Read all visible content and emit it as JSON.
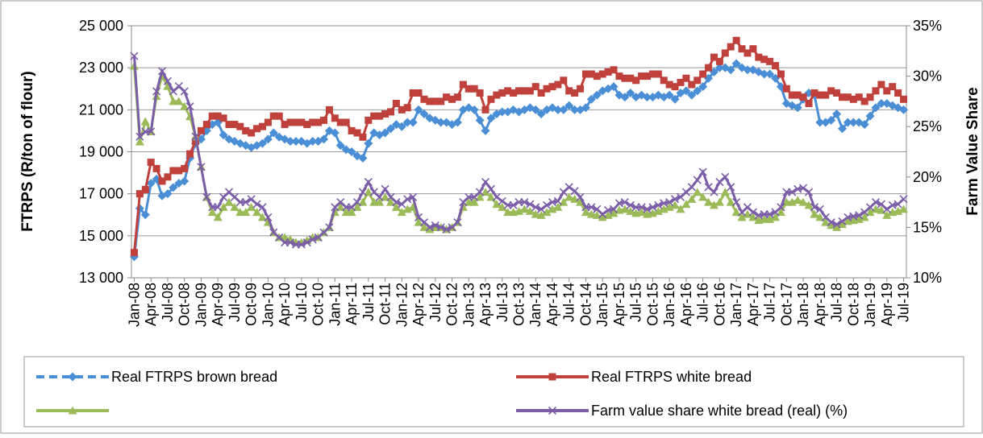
{
  "chart_data": {
    "type": "line",
    "y_title": "FTRPS (R/ton of flour)",
    "y2_title": "Farm Value Share",
    "categories": [
      "Jan-08",
      null,
      null,
      "Apr-08",
      null,
      null,
      "Jul-08",
      null,
      null,
      "Oct-08",
      null,
      null,
      "Jan-09",
      null,
      null,
      "Apr-09",
      null,
      null,
      "Jul-09",
      null,
      null,
      "Oct-09",
      null,
      null,
      "Jan-10",
      null,
      null,
      "Apr-10",
      null,
      null,
      "Jul-10",
      null,
      null,
      "Oct-10",
      null,
      null,
      "Jan-11",
      null,
      null,
      "Apr-11",
      null,
      null,
      "Jul-11",
      null,
      null,
      "Oct-11",
      null,
      null,
      "Jan-12",
      null,
      null,
      "Apr-12",
      null,
      null,
      "Jul-12",
      null,
      null,
      "Oct-12",
      null,
      null,
      "Jan-13",
      null,
      null,
      "Apr-13",
      null,
      null,
      "Jul-13",
      null,
      null,
      "Oct-13",
      null,
      null,
      "Jan-14",
      null,
      null,
      "Apr-14",
      null,
      null,
      "Jul-14",
      null,
      null,
      "Oct-14",
      null,
      null,
      "Jan-15",
      null,
      null,
      "Apr-15",
      null,
      null,
      "Jul-15",
      null,
      null,
      "Oct-15",
      null,
      null,
      "Jan-16",
      null,
      null,
      "Apr-16",
      null,
      null,
      "Jul-16",
      null,
      null,
      "Oct-16",
      null,
      null,
      "Jan-17",
      null,
      null,
      "Apr-17",
      null,
      null,
      "Jul-17",
      null,
      null,
      "Oct-17",
      null,
      null,
      "Jan-18",
      null,
      null,
      "Apr-18",
      null,
      null,
      "Jul-18",
      null,
      null,
      "Oct-18",
      null,
      null,
      "Jan-19",
      null,
      null,
      "Apr-19",
      null,
      null,
      "Jul-19"
    ],
    "ylim": [
      13000,
      25000
    ],
    "yticks": [
      {
        "value": 13000,
        "label": "13 000"
      },
      {
        "value": 15000,
        "label": "15 000"
      },
      {
        "value": 17000,
        "label": "17 000"
      },
      {
        "value": 19000,
        "label": "19 000"
      },
      {
        "value": 21000,
        "label": "21 000"
      },
      {
        "value": 23000,
        "label": "23 000"
      },
      {
        "value": 25000,
        "label": "25 000"
      }
    ],
    "y2lim": [
      10,
      35
    ],
    "y2ticks": [
      {
        "value": 10,
        "label": "10%"
      },
      {
        "value": 15,
        "label": "15%"
      },
      {
        "value": 20,
        "label": "20%"
      },
      {
        "value": 25,
        "label": "25%"
      },
      {
        "value": 30,
        "label": "30%"
      },
      {
        "value": 35,
        "label": "35%"
      }
    ],
    "grid": true,
    "series": [
      {
        "name": "Real FTRPS brown bread",
        "color": "#4a8ed6",
        "marker": "diamond",
        "dashed": true,
        "values": [
          14000,
          16300,
          16000,
          17500,
          17700,
          16900,
          17000,
          17300,
          17500,
          17600,
          18700,
          19400,
          19600,
          20000,
          20300,
          20400,
          19800,
          19600,
          19500,
          19400,
          19300,
          19200,
          19300,
          19400,
          19600,
          19900,
          19700,
          19600,
          19500,
          19500,
          19500,
          19400,
          19500,
          19500,
          19600,
          20000,
          19900,
          19300,
          19100,
          19000,
          18800,
          18700,
          19400,
          19900,
          19800,
          19900,
          20100,
          20300,
          20200,
          20400,
          20400,
          21000,
          20800,
          20600,
          20500,
          20400,
          20400,
          20300,
          20400,
          21000,
          21100,
          21000,
          20500,
          20000,
          20600,
          20800,
          20900,
          20900,
          21000,
          20900,
          21000,
          21100,
          21000,
          20800,
          21000,
          21100,
          21000,
          21000,
          21200,
          21000,
          21000,
          21100,
          21500,
          21700,
          21900,
          22000,
          22100,
          21700,
          21600,
          21800,
          21600,
          21700,
          21600,
          21600,
          21700,
          21600,
          21700,
          21500,
          21800,
          21900,
          21700,
          21900,
          22100,
          22500,
          22800,
          23000,
          23000,
          22900,
          23200,
          23000,
          22900,
          22900,
          22800,
          22700,
          22700,
          22500,
          22100,
          21300,
          21200,
          21100,
          21500,
          21800,
          21700,
          20400,
          20400,
          20500,
          20800,
          20100,
          20400,
          20400,
          20400,
          20300,
          20700,
          21100,
          21300,
          21300,
          21200,
          21100,
          21000
        ]
      },
      {
        "name": "Real FTRPS white bread",
        "color": "#c0403c",
        "marker": "square",
        "values": [
          14200,
          17000,
          17200,
          18500,
          18200,
          17600,
          17800,
          18100,
          18100,
          18200,
          18900,
          19500,
          20000,
          20300,
          20700,
          20700,
          20600,
          20300,
          20300,
          20200,
          20000,
          19900,
          20100,
          20200,
          20400,
          20700,
          20700,
          20300,
          20400,
          20400,
          20400,
          20300,
          20400,
          20400,
          20500,
          21000,
          20600,
          20400,
          20400,
          20000,
          19900,
          19700,
          20500,
          20700,
          20700,
          20800,
          20900,
          21300,
          21000,
          21100,
          21800,
          21800,
          21500,
          21400,
          21400,
          21400,
          21600,
          21500,
          21600,
          22200,
          22000,
          22000,
          21800,
          21000,
          21500,
          21700,
          21800,
          21900,
          21800,
          21900,
          21900,
          21900,
          22100,
          21800,
          22000,
          22100,
          22200,
          22400,
          21900,
          21800,
          22000,
          22700,
          22700,
          22600,
          22700,
          22800,
          22900,
          22600,
          22500,
          22500,
          22400,
          22600,
          22600,
          22700,
          22700,
          22400,
          22200,
          22100,
          22300,
          22500,
          22200,
          22400,
          22700,
          23000,
          23500,
          23300,
          23700,
          24000,
          24300,
          23900,
          23700,
          23900,
          23500,
          23400,
          23300,
          23100,
          22700,
          22000,
          21700,
          21700,
          21600,
          21300,
          21800,
          21700,
          21700,
          21900,
          21800,
          21600,
          21600,
          21500,
          21600,
          21400,
          21600,
          21900,
          22200,
          21900,
          22100,
          21800,
          21500
        ]
      },
      {
        "color": "#9bbb59",
        "marker": "triangle",
        "axis": "y2",
        "values": [
          31,
          23.5,
          25.5,
          24.5,
          28,
          30,
          29,
          27.5,
          27.5,
          27,
          26,
          24,
          21,
          18,
          16.5,
          16,
          17,
          17.5,
          17,
          16.5,
          16.5,
          17,
          16.5,
          16,
          15.5,
          14.5,
          14,
          14,
          13.8,
          13.5,
          13.5,
          13.7,
          14,
          14,
          14.5,
          15,
          16.5,
          17,
          16.5,
          16.5,
          17,
          17.5,
          18.5,
          17.5,
          17.5,
          18,
          17.5,
          17,
          16.5,
          16.8,
          17,
          15.5,
          15,
          14.8,
          15,
          15,
          14.8,
          15,
          15.5,
          17,
          17.5,
          17.5,
          18,
          18.5,
          18,
          17.3,
          17,
          16.5,
          16.5,
          16.6,
          16.8,
          16.6,
          16.3,
          16.2,
          16.5,
          16.8,
          17,
          17.5,
          18,
          17.8,
          17.5,
          16.5,
          16.3,
          16.2,
          16,
          16.2,
          16.4,
          16.7,
          16.8,
          16.6,
          16.4,
          16.5,
          16.3,
          16.4,
          16.6,
          16.8,
          17,
          17.2,
          16.8,
          17.3,
          17.8,
          18.5,
          18,
          17.5,
          17.2,
          17.5,
          18.5,
          17.5,
          16.5,
          16,
          16.3,
          16,
          15.7,
          15.8,
          15.8,
          16,
          16.5,
          17.5,
          17.5,
          17.7,
          17.5,
          17.2,
          16.3,
          16,
          15.5,
          15.2,
          15,
          15.3,
          15.6,
          15.7,
          15.8,
          16,
          16.5,
          16.8,
          16.7,
          16.2,
          16.5,
          16.6,
          16.8
        ]
      },
      {
        "name": "Farm value share white bread (real) (%)",
        "color": "#7b5ea7",
        "marker": "x",
        "axis": "y2",
        "values": [
          32,
          24,
          24.5,
          24.5,
          28.5,
          30.5,
          29.5,
          28.5,
          29,
          28.5,
          27,
          24,
          21,
          18,
          17,
          17,
          18,
          18.5,
          18,
          17.5,
          17.5,
          17.8,
          17.3,
          17,
          16,
          14.5,
          14,
          13.5,
          13.5,
          13.3,
          13.3,
          13.5,
          13.8,
          14,
          14.5,
          15,
          17,
          17.5,
          17,
          17,
          17.5,
          18.5,
          19.5,
          18.5,
          18,
          18.8,
          18,
          17.5,
          17.3,
          17.8,
          18,
          16,
          15.5,
          15,
          15.2,
          15,
          14.8,
          15,
          15.5,
          17.5,
          18,
          18,
          18.5,
          19.5,
          18.8,
          18,
          17.6,
          17.2,
          17.2,
          17.5,
          17.5,
          17.3,
          17,
          16.8,
          17.2,
          17.5,
          17.6,
          18.5,
          19,
          18.6,
          18,
          17,
          17,
          16.8,
          16.3,
          16.7,
          16.8,
          17.4,
          17.5,
          17.2,
          17,
          17,
          16.8,
          17,
          17.2,
          17.4,
          17.5,
          17.8,
          18,
          18.5,
          19,
          19.7,
          20.5,
          19,
          18.5,
          19.5,
          20,
          19,
          17.5,
          16.5,
          17,
          16.5,
          16.2,
          16.3,
          16.3,
          16.5,
          17,
          18.5,
          18.5,
          18.8,
          18.9,
          18.5,
          17,
          16.8,
          16,
          15.5,
          15.3,
          15.6,
          16,
          16.1,
          16.2,
          16.5,
          17,
          17.5,
          17.3,
          16.8,
          17.2,
          17.3,
          17.8
        ]
      }
    ]
  }
}
